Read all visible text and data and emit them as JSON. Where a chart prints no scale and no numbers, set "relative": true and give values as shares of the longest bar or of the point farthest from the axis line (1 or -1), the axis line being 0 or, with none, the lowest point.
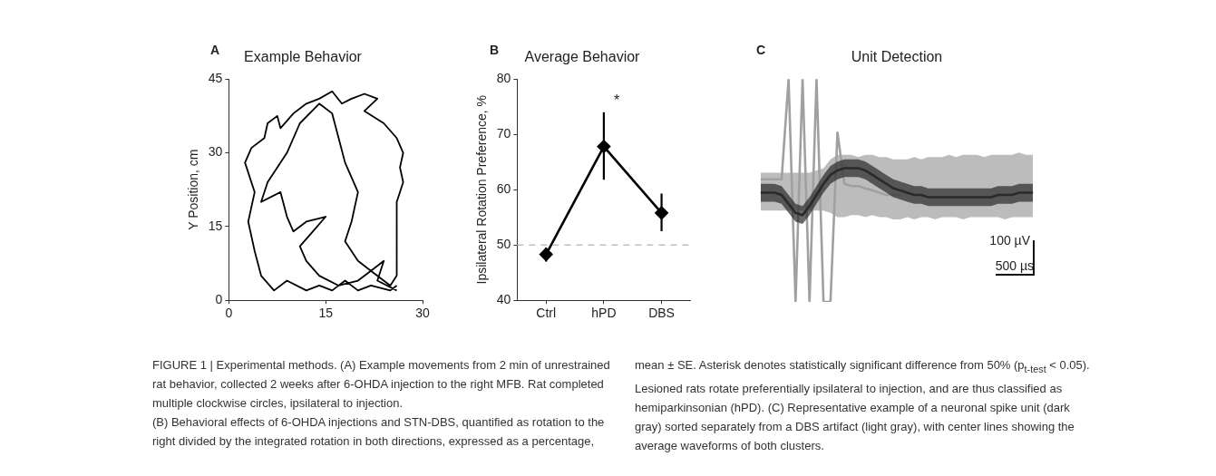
{
  "chart_data": [
    {
      "type": "line",
      "title": "Example Behavior",
      "ylabel": "Y Position, cm",
      "x": [
        26,
        25,
        22,
        20,
        18,
        16,
        14,
        12,
        9,
        7,
        5,
        4,
        3,
        4,
        2.5,
        3.5,
        5.5,
        6,
        7.5,
        8,
        10,
        12,
        14,
        16,
        17.5,
        19,
        21,
        23,
        21,
        24,
        26,
        27,
        26.5,
        27,
        26,
        26,
        25,
        22,
        20,
        18,
        19,
        20,
        18,
        17,
        16,
        14,
        11,
        9,
        6,
        5,
        8,
        9,
        10,
        12,
        15,
        13,
        11,
        12,
        14,
        17,
        20,
        22,
        24,
        23,
        26
      ],
      "series": [
        {
          "color": "#000000",
          "values": [
            3,
            2,
            3,
            2,
            4,
            2,
            3,
            2,
            4,
            2,
            5,
            10,
            16,
            22,
            28,
            31,
            33,
            36,
            37.5,
            35,
            38,
            40,
            41,
            42.5,
            40,
            41,
            42,
            41,
            38.5,
            36,
            33,
            30,
            27,
            24,
            20,
            5,
            3,
            6,
            8,
            12,
            16,
            22,
            28,
            33,
            38,
            40,
            36,
            30,
            24,
            20,
            22,
            17,
            14,
            16,
            17,
            14,
            11,
            8,
            5,
            3,
            4,
            6,
            8,
            4,
            2
          ]
        }
      ],
      "xlim": [
        0,
        30
      ],
      "xticks": [
        0,
        15,
        30
      ],
      "ylim": [
        0,
        45
      ],
      "yticks": [
        0,
        15,
        30,
        45
      ],
      "marker": "none",
      "line_style": "solid",
      "annotations": [
        "A",
        "FIGURE 1 | Experimental methods. (A) Example movements from 2 min of unrestrained rat behavior, collected 2 weeks after 6-OHDA injection to the right MFB. Rat completed multiple clockwise circles, ipsilateral to injection.",
        "(B) Behavioral effects of 6-OHDA injections and STN-DBS, quantified as rotation to the right divided by the integrated rotation in both directions, expressed as a percentage, mean ± SE. Asterisk denotes statistically significant difference from 50% (p$_{t-test}$ < 0.05). Lesioned rats rotate preferentially ipsilateral to injection, and are thus classified as hemiparkinsonian (hPD). (C) Representative example of a neuronal spike unit (dark gray) sorted separately from a DBS artifact (light gray), with center lines showing the average waveforms of both clusters."
      ]
    },
    {
      "type": "line",
      "title": "Average Behavior",
      "ylabel": "Ipsilateral Rotation Preference, %",
      "categories": [
        "Ctrl",
        "hPD",
        "DBS"
      ],
      "series": [
        {
          "color": "#000000",
          "values": [
            48.3,
            67.8,
            55.8
          ],
          "errors": [
            [
              47,
              49.5
            ],
            [
              61.8,
              74
            ],
            [
              52.5,
              59.3
            ]
          ]
        }
      ],
      "ylim": [
        40,
        80
      ],
      "yticks": [
        40,
        50,
        60,
        70,
        80
      ],
      "marker": "diamond",
      "line_style": "solid",
      "ref_lines": [
        {
          "axis": "y",
          "value": 50,
          "color": "#c0c0c0",
          "line_style": "dashed"
        }
      ],
      "annotations": [
        "B",
        "*"
      ]
    },
    {
      "type": "line",
      "title": "Unit Detection",
      "relative": true,
      "categories": [
        null,
        null,
        null,
        null,
        null,
        null,
        null,
        null,
        null,
        null,
        null,
        null,
        null,
        null,
        null,
        null,
        null,
        null,
        null,
        null,
        null,
        null,
        null,
        null,
        null,
        null,
        null,
        null,
        null,
        null,
        null,
        null,
        null,
        null,
        null,
        null,
        null,
        null,
        null,
        null
      ],
      "series": [
        {
          "color": "#a0a0a0",
          "values": [
            0.55,
            0.55,
            0.55,
            0.55,
            1,
            0,
            1,
            0,
            1,
            0,
            0,
            0.76,
            0.53,
            0.52,
            0.52,
            0.51,
            0.5,
            0.49,
            0.48,
            0.48,
            0.48,
            null,
            null,
            null,
            null,
            null,
            null,
            null,
            null,
            null,
            null,
            null,
            null,
            null,
            null,
            null,
            null,
            null,
            null,
            null
          ],
          "lower": [
            0.41,
            0.41,
            0.41,
            0.41,
            0.41,
            0.41,
            0.41,
            0.41,
            0.41,
            0.41,
            0.4,
            0.38,
            0.38,
            0.39,
            0.39,
            0.38,
            0.39,
            0.38,
            0.38,
            0.37,
            0.37,
            0.38,
            0.37,
            0.38,
            0.38,
            0.37,
            0.38,
            0.38,
            0.38,
            0.37,
            0.38,
            0.38,
            0.38,
            0.38,
            0.38,
            0.37,
            0.38,
            0.38,
            0.38,
            0.38
          ],
          "upper": [
            0.58,
            0.58,
            0.58,
            0.58,
            0.58,
            0.58,
            0.58,
            0.58,
            0.59,
            0.6,
            0.64,
            0.66,
            0.66,
            0.66,
            0.65,
            0.66,
            0.66,
            0.65,
            0.65,
            0.64,
            0.64,
            0.64,
            0.65,
            0.64,
            0.65,
            0.65,
            0.65,
            0.66,
            0.65,
            0.66,
            0.66,
            0.66,
            0.65,
            0.66,
            0.66,
            0.66,
            0.66,
            0.67,
            0.66,
            0.66
          ]
        },
        {
          "color": "#2a2a2a",
          "values": [
            0.49,
            0.49,
            0.49,
            0.48,
            0.44,
            0.4,
            0.39,
            0.43,
            0.48,
            0.53,
            0.57,
            0.59,
            0.6,
            0.6,
            0.6,
            0.59,
            0.57,
            0.55,
            0.53,
            0.51,
            0.5,
            0.49,
            0.48,
            0.48,
            0.47,
            0.47,
            0.47,
            0.47,
            0.47,
            0.47,
            0.47,
            0.47,
            0.47,
            0.47,
            0.48,
            0.48,
            0.48,
            0.49,
            0.49,
            0.49
          ],
          "lower": [
            0.45,
            0.45,
            0.45,
            0.44,
            0.4,
            0.36,
            0.35,
            0.39,
            0.44,
            0.49,
            0.53,
            0.55,
            0.56,
            0.56,
            0.56,
            0.55,
            0.53,
            0.51,
            0.49,
            0.47,
            0.46,
            0.45,
            0.44,
            0.44,
            0.43,
            0.43,
            0.43,
            0.43,
            0.43,
            0.43,
            0.43,
            0.43,
            0.43,
            0.43,
            0.44,
            0.44,
            0.44,
            0.45,
            0.45,
            0.45
          ],
          "upper": [
            0.53,
            0.53,
            0.53,
            0.52,
            0.48,
            0.44,
            0.43,
            0.47,
            0.52,
            0.57,
            0.61,
            0.63,
            0.64,
            0.64,
            0.64,
            0.63,
            0.61,
            0.59,
            0.57,
            0.55,
            0.54,
            0.53,
            0.52,
            0.52,
            0.51,
            0.51,
            0.51,
            0.51,
            0.51,
            0.51,
            0.51,
            0.51,
            0.51,
            0.51,
            0.52,
            0.52,
            0.52,
            0.53,
            0.53,
            0.53
          ]
        }
      ],
      "marker": "none",
      "line_style": "solid",
      "annotations": [
        "C",
        "100 µV",
        "500 µs"
      ]
    }
  ]
}
